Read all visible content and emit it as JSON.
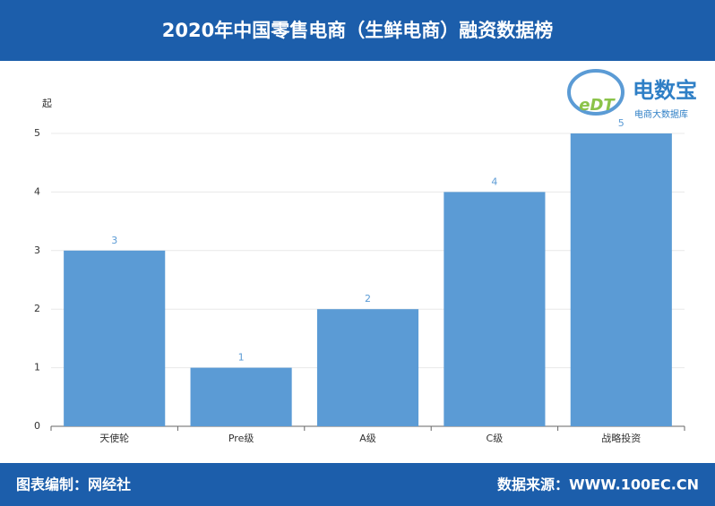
{
  "chart_data": {
    "type": "bar",
    "title": "2020年中国零售电商（生鲜电商）融资数据榜",
    "y_label": "起",
    "categories": [
      "天使轮",
      "Pre级",
      "A级",
      "C级",
      "战略投资"
    ],
    "values": [
      3,
      1,
      2,
      4,
      5
    ],
    "color": "#5b9bd5",
    "ylim": [
      0,
      5
    ],
    "yticks": [
      0,
      1,
      2,
      3,
      4,
      5
    ],
    "grid": true
  },
  "logo": {
    "mark": "eDT",
    "name": "电数宝",
    "tagline": "电商大数据库"
  },
  "footer": {
    "left": "图表编制：网经社",
    "right": "数据来源：WWW.100EC.CN"
  }
}
